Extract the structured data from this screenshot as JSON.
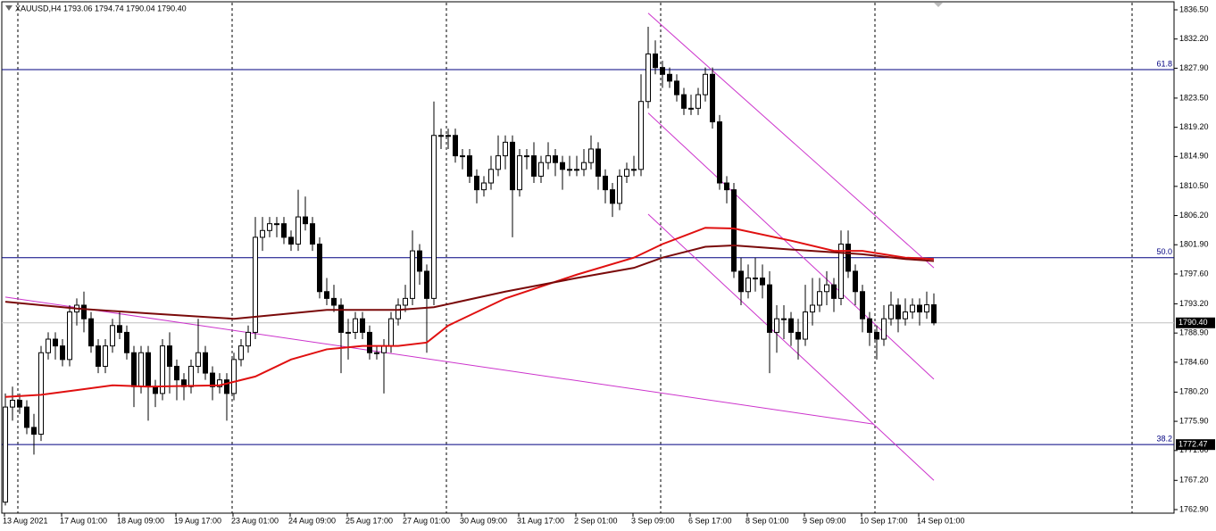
{
  "chart_data": {
    "type": "candlestick",
    "title": "XAUUSD,H4 1793.06 1794.74 1790.04 1790.40",
    "categories": [
      "13 Aug 2021",
      "17 Aug 01:00",
      "18 Aug 09:00",
      "19 Aug 17:00",
      "23 Aug 01:00",
      "24 Aug 09:00",
      "25 Aug 17:00",
      "27 Aug 01:00",
      "30 Aug 09:00",
      "31 Aug 17:00",
      "2 Sep 01:00",
      "3 Sep 09:00",
      "6 Sep 17:00",
      "8 Sep 01:00",
      "9 Sep 09:00",
      "10 Sep 17:00",
      "14 Sep 01:00"
    ],
    "ylim": [
      1762.9,
      1836.5
    ],
    "yticks": [
      {
        "value": 1836.5,
        "label": "1836.50"
      },
      {
        "value": 1832.2,
        "label": "1832.20"
      },
      {
        "value": 1827.9,
        "label": "1827.90"
      },
      {
        "value": 1823.5,
        "label": "1823.50"
      },
      {
        "value": 1819.2,
        "label": "1819.20"
      },
      {
        "value": 1814.9,
        "label": "1814.90"
      },
      {
        "value": 1810.5,
        "label": "1810.50"
      },
      {
        "value": 1806.2,
        "label": "1806.20"
      },
      {
        "value": 1801.9,
        "label": "1801.90"
      },
      {
        "value": 1797.6,
        "label": "1797.60"
      },
      {
        "value": 1793.2,
        "label": "1793.20"
      },
      {
        "value": 1788.9,
        "label": "1788.90"
      },
      {
        "value": 1784.6,
        "label": "1784.60"
      },
      {
        "value": 1780.2,
        "label": "1780.20"
      },
      {
        "value": 1775.9,
        "label": "1775.90"
      },
      {
        "value": 1771.6,
        "label": "1771.60"
      },
      {
        "value": 1767.2,
        "label": "1767.20"
      },
      {
        "value": 1762.9,
        "label": "1762.90"
      }
    ],
    "ohlc": [
      [
        1764,
        1780,
        1763.5,
        1778
      ],
      [
        1778,
        1781,
        1776,
        1779
      ],
      [
        1779,
        1780,
        1777,
        1778
      ],
      [
        1778,
        1779,
        1774,
        1775
      ],
      [
        1775,
        1777,
        1771,
        1774
      ],
      [
        1774,
        1787,
        1773,
        1786
      ],
      [
        1786,
        1789,
        1785,
        1788
      ],
      [
        1788,
        1789,
        1785,
        1787
      ],
      [
        1787,
        1788,
        1784,
        1785
      ],
      [
        1785,
        1793,
        1784,
        1792
      ],
      [
        1792,
        1794,
        1790,
        1793
      ],
      [
        1793,
        1795,
        1789,
        1791
      ],
      [
        1791,
        1792,
        1786,
        1787
      ],
      [
        1787,
        1788,
        1783,
        1784
      ],
      [
        1784,
        1788,
        1783,
        1787
      ],
      [
        1787,
        1791,
        1786,
        1790
      ],
      [
        1790,
        1792,
        1788,
        1789
      ],
      [
        1789,
        1790,
        1785,
        1786
      ],
      [
        1786,
        1787,
        1778,
        1781
      ],
      [
        1781,
        1787,
        1780,
        1786
      ],
      [
        1786,
        1787,
        1776,
        1781
      ],
      [
        1781,
        1782,
        1778,
        1780
      ],
      [
        1780,
        1788,
        1779,
        1787
      ],
      [
        1787,
        1789,
        1780,
        1784
      ],
      [
        1784,
        1785,
        1779,
        1782
      ],
      [
        1782,
        1783,
        1779,
        1781
      ],
      [
        1781,
        1785,
        1780,
        1784
      ],
      [
        1784,
        1791,
        1783,
        1786
      ],
      [
        1786,
        1787,
        1782,
        1783
      ],
      [
        1783,
        1784,
        1779,
        1781
      ],
      [
        1781,
        1783,
        1780,
        1782
      ],
      [
        1782,
        1783,
        1776,
        1780
      ],
      [
        1780,
        1786,
        1779,
        1785
      ],
      [
        1785,
        1788,
        1784,
        1787
      ],
      [
        1787,
        1790,
        1786,
        1789
      ],
      [
        1789,
        1806,
        1788,
        1803
      ],
      [
        1803,
        1806,
        1801,
        1804
      ],
      [
        1804,
        1806,
        1803,
        1805
      ],
      [
        1805,
        1806,
        1803,
        1805
      ],
      [
        1805,
        1806,
        1802,
        1803
      ],
      [
        1803,
        1804,
        1801,
        1802
      ],
      [
        1802,
        1810,
        1801,
        1806
      ],
      [
        1806,
        1809,
        1804,
        1805
      ],
      [
        1805,
        1806,
        1801,
        1802
      ],
      [
        1802,
        1803,
        1794,
        1795
      ],
      [
        1795,
        1797,
        1793,
        1794
      ],
      [
        1794,
        1796,
        1792,
        1793
      ],
      [
        1793,
        1794,
        1783,
        1789
      ],
      [
        1789,
        1791,
        1785,
        1789
      ],
      [
        1789,
        1792,
        1788,
        1791
      ],
      [
        1791,
        1792,
        1788,
        1789
      ],
      [
        1789,
        1790,
        1785,
        1786
      ],
      [
        1786,
        1787,
        1785,
        1786
      ],
      [
        1786,
        1788,
        1780,
        1787
      ],
      [
        1787,
        1792,
        1786,
        1791
      ],
      [
        1791,
        1794,
        1790,
        1793
      ],
      [
        1793,
        1796,
        1792,
        1794
      ],
      [
        1794,
        1804,
        1793,
        1801
      ],
      [
        1801,
        1802,
        1796,
        1798
      ],
      [
        1798,
        1799,
        1786,
        1794
      ],
      [
        1794,
        1823,
        1793,
        1818
      ],
      [
        1818,
        1819,
        1816,
        1818
      ],
      [
        1818,
        1819,
        1816,
        1818
      ],
      [
        1818,
        1819,
        1814,
        1815
      ],
      [
        1815,
        1816,
        1813,
        1815
      ],
      [
        1815,
        1816,
        1811,
        1812
      ],
      [
        1812,
        1813,
        1808,
        1810
      ],
      [
        1810,
        1812,
        1809,
        1811
      ],
      [
        1811,
        1815,
        1810,
        1813
      ],
      [
        1813,
        1818,
        1812,
        1815
      ],
      [
        1815,
        1818,
        1813,
        1817
      ],
      [
        1817,
        1818,
        1803,
        1810
      ],
      [
        1810,
        1816,
        1809,
        1815
      ],
      [
        1815,
        1816,
        1813,
        1815
      ],
      [
        1815,
        1817,
        1811,
        1812
      ],
      [
        1812,
        1815,
        1811,
        1814
      ],
      [
        1814,
        1817,
        1813,
        1815
      ],
      [
        1815,
        1816,
        1812,
        1814
      ],
      [
        1814,
        1815,
        1810,
        1813
      ],
      [
        1813,
        1815,
        1812,
        1813
      ],
      [
        1813,
        1815,
        1812,
        1813
      ],
      [
        1813,
        1816,
        1812,
        1814
      ],
      [
        1814,
        1818,
        1813,
        1816
      ],
      [
        1816,
        1817,
        1810,
        1812
      ],
      [
        1812,
        1813,
        1808,
        1810
      ],
      [
        1810,
        1811,
        1806,
        1808
      ],
      [
        1808,
        1813,
        1807,
        1812
      ],
      [
        1812,
        1814,
        1811,
        1813
      ],
      [
        1813,
        1815,
        1812,
        1813
      ],
      [
        1813,
        1827,
        1812,
        1823
      ],
      [
        1823,
        1834,
        1822,
        1830
      ],
      [
        1830,
        1832,
        1827,
        1828
      ],
      [
        1828,
        1829,
        1825,
        1827
      ],
      [
        1827,
        1828,
        1825,
        1826
      ],
      [
        1826,
        1827,
        1823,
        1824
      ],
      [
        1824,
        1825,
        1821,
        1822
      ],
      [
        1822,
        1824,
        1821,
        1822
      ],
      [
        1822,
        1825,
        1821,
        1824
      ],
      [
        1824,
        1828,
        1823,
        1827
      ],
      [
        1827,
        1828,
        1819,
        1820
      ],
      [
        1820,
        1821,
        1810,
        1811
      ],
      [
        1811,
        1812,
        1808,
        1810
      ],
      [
        1810,
        1811,
        1797,
        1798
      ],
      [
        1798,
        1800,
        1793,
        1795
      ],
      [
        1795,
        1799,
        1794,
        1797
      ],
      [
        1797,
        1800,
        1795,
        1797
      ],
      [
        1797,
        1799,
        1794,
        1796
      ],
      [
        1796,
        1798,
        1783,
        1789
      ],
      [
        1789,
        1793,
        1786,
        1791
      ],
      [
        1791,
        1793,
        1788,
        1791
      ],
      [
        1791,
        1792,
        1787,
        1789
      ],
      [
        1789,
        1791,
        1785,
        1788
      ],
      [
        1788,
        1796,
        1787,
        1792
      ],
      [
        1792,
        1797,
        1790,
        1793
      ],
      [
        1793,
        1797,
        1792,
        1795
      ],
      [
        1795,
        1798,
        1793,
        1796
      ],
      [
        1796,
        1797,
        1792,
        1794
      ],
      [
        1794,
        1804,
        1793,
        1802
      ],
      [
        1802,
        1804,
        1797,
        1798
      ],
      [
        1798,
        1799,
        1793,
        1795
      ],
      [
        1795,
        1796,
        1789,
        1791
      ],
      [
        1791,
        1792,
        1787,
        1789
      ],
      [
        1789,
        1790,
        1785,
        1788
      ],
      [
        1788,
        1793,
        1787,
        1791
      ],
      [
        1791,
        1795,
        1790,
        1793
      ],
      [
        1793,
        1794,
        1789,
        1791
      ],
      [
        1791,
        1794,
        1790,
        1792
      ],
      [
        1792,
        1794,
        1791,
        1793
      ],
      [
        1793,
        1794,
        1790,
        1792
      ],
      [
        1792,
        1795,
        1791,
        1793.06
      ],
      [
        1793.06,
        1794.74,
        1790.04,
        1790.4
      ]
    ],
    "series": [
      {
        "color": "#e01010",
        "x": [
          0,
          5,
          10,
          15,
          20,
          30,
          35,
          40,
          45,
          50,
          55,
          59,
          62,
          70,
          80,
          88,
          92,
          98,
          102,
          110,
          116,
          120,
          126,
          130
        ],
        "values": [
          1779.5,
          1779.8,
          1780.5,
          1781.2,
          1781,
          1781.2,
          1782.5,
          1785,
          1786.5,
          1787,
          1787,
          1787.5,
          1790,
          1794,
          1797.5,
          1800,
          1802,
          1804.4,
          1804.3,
          1802.5,
          1801,
          1801,
          1800,
          1799.8
        ]
      },
      {
        "color": "#7a0a0a",
        "x": [
          0,
          10,
          20,
          32,
          40,
          45,
          55,
          60,
          70,
          80,
          88,
          92,
          98,
          102,
          110,
          120,
          126,
          130
        ],
        "values": [
          1793.5,
          1792.5,
          1791.8,
          1791,
          1791.8,
          1792.3,
          1792.3,
          1792.7,
          1795,
          1797,
          1798.5,
          1800,
          1801.6,
          1801.8,
          1801.2,
          1800.5,
          1799.8,
          1799.5
        ]
      }
    ],
    "trendlines": [
      {
        "from": [
          0,
          1794.2
        ],
        "to": [
          121.5,
          1775.5
        ]
      },
      {
        "from": [
          90,
          1836
        ],
        "to": [
          130,
          1798.5
        ]
      },
      {
        "from": [
          90,
          1821.3
        ],
        "to": [
          130,
          1782.1
        ]
      },
      {
        "from": [
          90,
          1806.4
        ],
        "to": [
          130,
          1767.2
        ]
      }
    ],
    "levels": [
      {
        "label": "61.8",
        "value": 1827.7
      },
      {
        "label": "50.0",
        "value": 1800
      },
      {
        "label": "38.2",
        "value": 1772.47,
        "value_label": "1772.47"
      }
    ],
    "last_price": {
      "value": 1790.4,
      "label": "1790.40"
    }
  }
}
